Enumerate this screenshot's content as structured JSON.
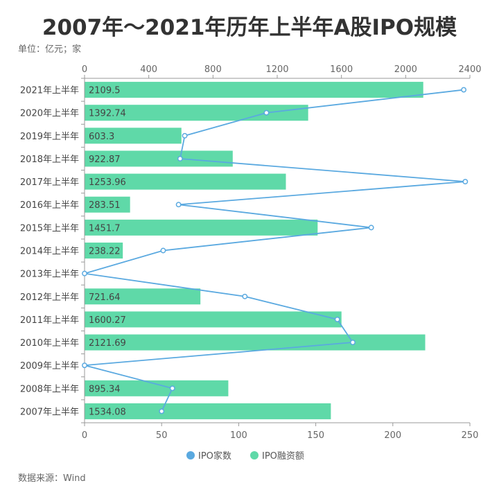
{
  "header": {
    "title": "2007年～2021年历年上半年A股IPO规模",
    "unit": "单位：亿元；家",
    "source": "数据来源：Wind"
  },
  "colors": {
    "bar": "#5fd9a8",
    "line": "#5aa9e0",
    "axis": "#999999",
    "grid": "#e6e6e6"
  },
  "chart_data": {
    "type": "bar",
    "orientation": "horizontal",
    "categories": [
      "2021年上半年",
      "2020年上半年",
      "2019年上半年",
      "2018年上半年",
      "2017年上半年",
      "2016年上半年",
      "2015年上半年",
      "2014年上半年",
      "2013年上半年",
      "2012年上半年",
      "2011年上半年",
      "2010年上半年",
      "2009年上半年",
      "2008年上半年",
      "2007年上半年"
    ],
    "series": [
      {
        "name": "IPO融资额",
        "type": "bar",
        "axis": "top",
        "values": [
          2109.5,
          1392.74,
          603.3,
          922.87,
          1253.96,
          283.51,
          1451.7,
          238.22,
          0,
          721.64,
          1600.27,
          2121.69,
          0,
          895.34,
          1534.08
        ],
        "labels": [
          "2109.5",
          "1392.74",
          "603.3",
          "922.87",
          "1253.96",
          "283.51",
          "1451.7",
          "238.22",
          "",
          "721.64",
          "1600.27",
          "2121.69",
          "",
          "895.34",
          "1534.08"
        ]
      },
      {
        "name": "IPO家数",
        "type": "line",
        "axis": "bottom",
        "values": [
          246,
          118,
          65,
          62,
          247,
          61,
          186,
          51,
          0,
          104,
          164,
          174,
          0,
          57,
          50
        ]
      }
    ],
    "axis_top": {
      "min": 0,
      "max": 2400,
      "ticks": [
        "0",
        "400",
        "800",
        "1200",
        "1600",
        "2000",
        "2400"
      ]
    },
    "axis_bottom": {
      "min": 0,
      "max": 250,
      "ticks": [
        "0",
        "50",
        "100",
        "150",
        "200",
        "250"
      ]
    },
    "legend": {
      "position": "bottom-center",
      "items": [
        "IPO家数",
        "IPO融资额"
      ]
    }
  }
}
